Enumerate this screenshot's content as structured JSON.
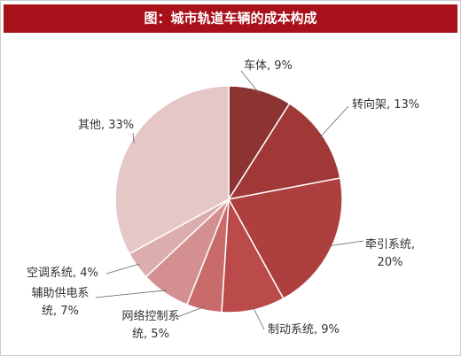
{
  "chart_data": {
    "type": "pie",
    "title": "图：城市轨道车辆的成本构成",
    "values": [
      9,
      13,
      20,
      9,
      5,
      7,
      4,
      33
    ],
    "value_labels": [
      "车体, 9%",
      "转向架, 13%",
      "牵引系统,\n20%",
      "制动系统, 9%",
      "网络控制系\n统, 5%",
      "辅助供电系\n统, 7%",
      "空调系统, 4%",
      "其他, 33%"
    ],
    "colors": [
      "#8c3434",
      "#a03838",
      "#ae3f3f",
      "#bb4b4b",
      "#c96b6b",
      "#d49090",
      "#dcadad",
      "#e6c7c7"
    ]
  }
}
